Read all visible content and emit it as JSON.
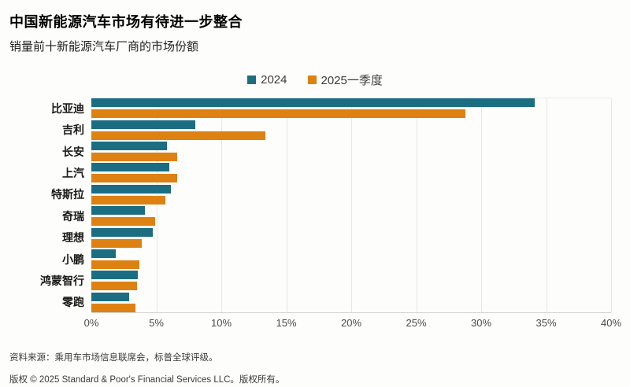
{
  "header": {
    "title": "中国新能源汽车市场有待进一步整合",
    "subtitle": "销量前十新能源汽车厂商的市场份额"
  },
  "chart_data": {
    "type": "bar",
    "orientation": "horizontal",
    "title": "中国新能源汽车市场有待进一步整合",
    "subtitle": "销量前十新能源汽车厂商的市场份额",
    "categories": [
      "比亚迪",
      "吉利",
      "长安",
      "上汽",
      "特斯拉",
      "奇瑞",
      "理想",
      "小鹏",
      "鸿蒙智行",
      "零跑"
    ],
    "series": [
      {
        "name": "2024",
        "color": "#1b6e82",
        "values": [
          34.1,
          8.0,
          5.8,
          6.0,
          6.1,
          4.1,
          4.7,
          1.9,
          3.6,
          2.9
        ]
      },
      {
        "name": "2025一季度",
        "color": "#dd8112",
        "values": [
          28.8,
          13.4,
          6.6,
          6.6,
          5.7,
          4.9,
          3.9,
          3.7,
          3.5,
          3.4
        ]
      }
    ],
    "xlim": [
      0,
      40
    ],
    "x_ticks": [
      "0%",
      "5%",
      "10%",
      "15%",
      "20%",
      "25%",
      "30%",
      "35%",
      "40%"
    ],
    "unit": "%",
    "grid": true,
    "legend_position": "top-center",
    "gridline_color": "#e9e7e3"
  },
  "footer": {
    "source": "资料来源：乘用车市场信息联席会，标普全球评级。",
    "copyright": "版权 © 2025 Standard & Poor's Financial Services LLC。版权所有。"
  }
}
